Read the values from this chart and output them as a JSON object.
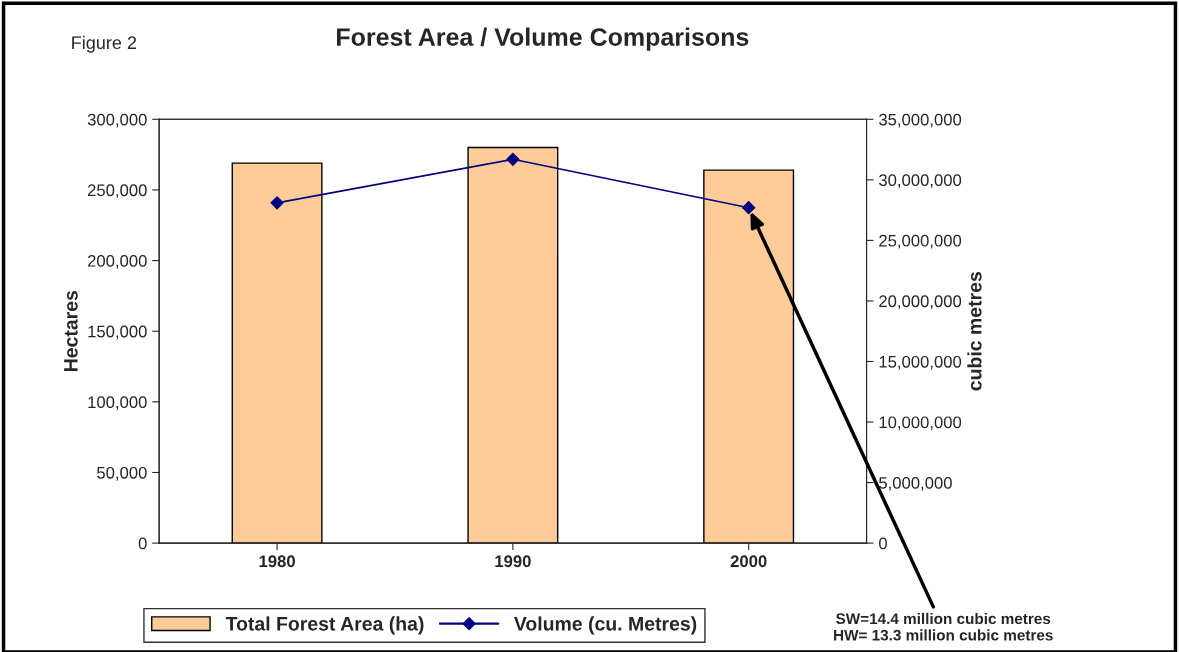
{
  "chart_data": {
    "type": "bar",
    "title": "Forest Area / Volume Comparisons",
    "categories": [
      "1980",
      "1990",
      "2000"
    ],
    "ylabel": "Hectares",
    "y2label": "cubic metres",
    "series": [
      {
        "name": "Total Forest Area (ha)",
        "color": "#ffcc99",
        "values": [
          269000,
          280000,
          264000
        ]
      },
      {
        "name": "Volume (cu. Metres)",
        "type": "line",
        "axis": "y2",
        "color": "#000080",
        "marker": "diamond",
        "values": [
          28100000,
          31700000,
          27700000
        ]
      }
    ],
    "ylim": [
      0,
      300000
    ],
    "yticks": [
      {
        "value": 0,
        "label": "0"
      },
      {
        "value": 50000,
        "label": "50,000"
      },
      {
        "value": 100000,
        "label": "100,000"
      },
      {
        "value": 150000,
        "label": "150,000"
      },
      {
        "value": 200000,
        "label": "200,000"
      },
      {
        "value": 250000,
        "label": "250,000"
      },
      {
        "value": 300000,
        "label": "300,000"
      }
    ],
    "y2lim": [
      0,
      35000000
    ],
    "y2ticks": [
      {
        "value": 0,
        "label": "0"
      },
      {
        "value": 5000000,
        "label": "5,000,000"
      },
      {
        "value": 10000000,
        "label": "10,000,000"
      },
      {
        "value": 15000000,
        "label": "15,000,000"
      },
      {
        "value": 20000000,
        "label": "20,000,000"
      },
      {
        "value": 25000000,
        "label": "25,000,000"
      },
      {
        "value": 30000000,
        "label": "30,000,000"
      },
      {
        "value": 35000000,
        "label": "35,000,000"
      }
    ],
    "legend": "bottom",
    "grid": false,
    "annotations": [
      "Figure 2",
      "SW=14.4 million cubic metres\nHW= 13.3 million cubic metres"
    ]
  }
}
